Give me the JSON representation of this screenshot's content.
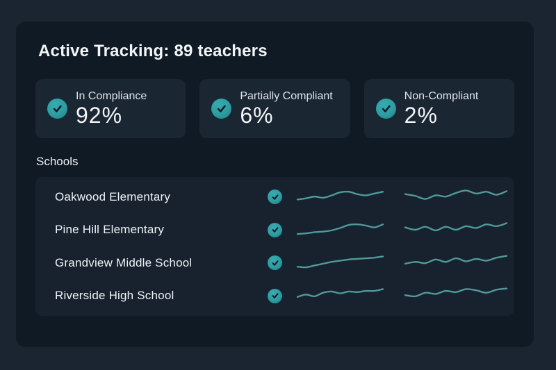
{
  "header": {
    "title": "Active Tracking: 89 teachers"
  },
  "stats": {
    "cards": [
      {
        "label": "In Compliance",
        "value": "92%",
        "icon": "check-circle-icon"
      },
      {
        "label": "Partially Compliant",
        "value": "6%",
        "icon": "check-circle-icon"
      },
      {
        "label": "Non-Compliant",
        "value": "2%",
        "icon": "check-circle-icon"
      }
    ]
  },
  "schools": {
    "heading": "Schools",
    "rows": [
      {
        "name": "Oakwood Elementary",
        "status_icon": "check-circle-icon",
        "spark_a": [
          19,
          17,
          14,
          16,
          12,
          7,
          6,
          10,
          12,
          9,
          6
        ],
        "spark_b": [
          10,
          13,
          18,
          12,
          14,
          8,
          4,
          9,
          6,
          11,
          5
        ]
      },
      {
        "name": "Pine Hill Elementary",
        "status_icon": "check-circle-icon",
        "spark_a": [
          22,
          21,
          19,
          18,
          16,
          12,
          7,
          6,
          8,
          11,
          6
        ],
        "spark_b": [
          11,
          15,
          10,
          16,
          10,
          15,
          9,
          12,
          6,
          9,
          4
        ]
      },
      {
        "name": "Grandview Middle School",
        "status_icon": "check-circle-icon",
        "spark_a": [
          21,
          22,
          19,
          16,
          13,
          11,
          9,
          8,
          7,
          6,
          4
        ],
        "spark_b": [
          16,
          13,
          15,
          9,
          13,
          7,
          12,
          8,
          11,
          6,
          3
        ]
      },
      {
        "name": "Riverside High School",
        "status_icon": "check-circle-icon",
        "spark_a": [
          17,
          13,
          16,
          10,
          8,
          11,
          8,
          9,
          7,
          7,
          4
        ],
        "spark_b": [
          14,
          16,
          10,
          12,
          7,
          9,
          4,
          6,
          10,
          5,
          3
        ]
      }
    ]
  },
  "chart_data": {
    "type": "line",
    "title": "Per-school compliance sparklines (unlabeled decorative trends)",
    "series": [
      {
        "name": "Oakwood Elementary A",
        "values": [
          19,
          17,
          14,
          16,
          12,
          7,
          6,
          10,
          12,
          9,
          6
        ]
      },
      {
        "name": "Oakwood Elementary B",
        "values": [
          10,
          13,
          18,
          12,
          14,
          8,
          4,
          9,
          6,
          11,
          5
        ]
      },
      {
        "name": "Pine Hill Elementary A",
        "values": [
          22,
          21,
          19,
          18,
          16,
          12,
          7,
          6,
          8,
          11,
          6
        ]
      },
      {
        "name": "Pine Hill Elementary B",
        "values": [
          11,
          15,
          10,
          16,
          10,
          15,
          9,
          12,
          6,
          9,
          4
        ]
      },
      {
        "name": "Grandview Middle School A",
        "values": [
          21,
          22,
          19,
          16,
          13,
          11,
          9,
          8,
          7,
          6,
          4
        ]
      },
      {
        "name": "Grandview Middle School B",
        "values": [
          16,
          13,
          15,
          9,
          13,
          7,
          12,
          8,
          11,
          6,
          3
        ]
      },
      {
        "name": "Riverside High School A",
        "values": [
          17,
          13,
          16,
          10,
          8,
          11,
          8,
          9,
          7,
          7,
          4
        ]
      },
      {
        "name": "Riverside High School B",
        "values": [
          14,
          16,
          10,
          12,
          7,
          9,
          4,
          6,
          10,
          5,
          3
        ]
      }
    ],
    "xlabel": "",
    "ylabel": "",
    "grid": false,
    "legend_position": "none"
  },
  "theme": {
    "page_bg": "#1b2531",
    "panel_bg": "#101a24",
    "card_bg": "#1a2632",
    "list_bg": "#17222e",
    "accent_teal": "#2d9da1",
    "sparkline_color": "#4f9a99",
    "check_stroke": "#0f1a26",
    "text_bright": "#f3f6f8",
    "text_soft": "#dde4ea"
  }
}
